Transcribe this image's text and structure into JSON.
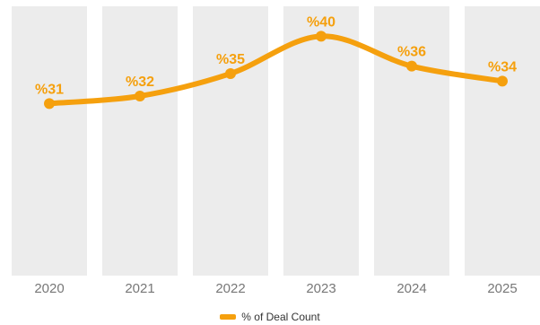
{
  "colors": {
    "band": "#ececec",
    "line": "#f5a00e",
    "label": "#f5a00e",
    "tick": "#777777"
  },
  "chart_data": {
    "type": "line",
    "categories": [
      "2020",
      "2021",
      "2022",
      "2023",
      "2024",
      "2025"
    ],
    "series": [
      {
        "name": "% of Deal Count",
        "values": [
          31,
          32,
          35,
          40,
          36,
          34
        ],
        "labels": [
          "%31",
          "%32",
          "%35",
          "%40",
          "%36",
          "%34"
        ]
      }
    ],
    "ylim": [
      8,
      44
    ],
    "grid": false,
    "legend": "bottom-center",
    "smooth": true
  }
}
